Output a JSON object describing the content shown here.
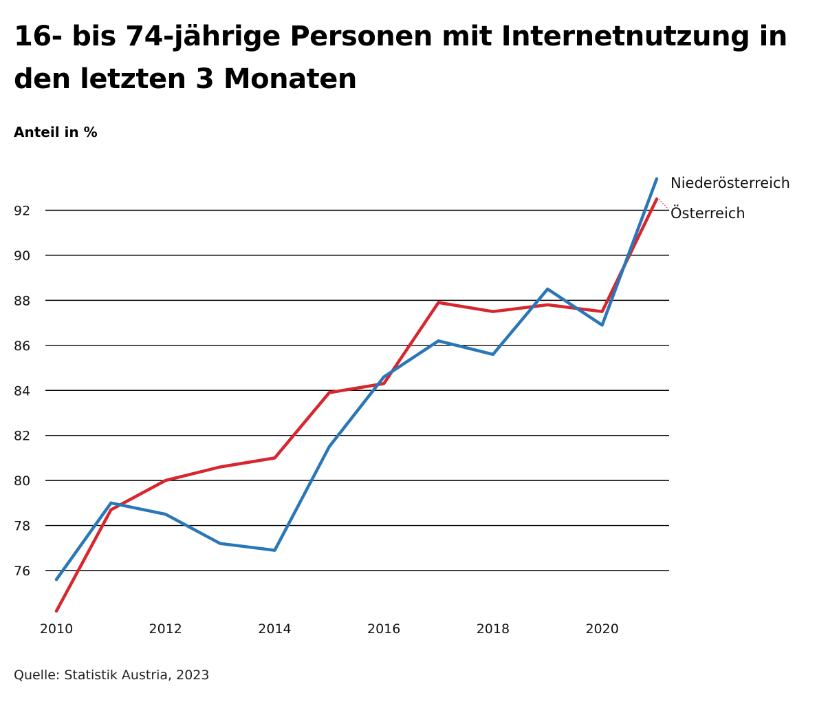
{
  "title": "16- bis 74-jährige Personen mit Internetnutzung in den letzten 3 Monaten",
  "ylabel": "Anteil in %",
  "source": "Quelle: Statistik Austria, 2023",
  "chart_data": {
    "type": "line",
    "title": "16- bis 74-jährige Personen mit Internetnutzung in den letzten 3 Monaten",
    "xlabel": "",
    "ylabel": "Anteil in %",
    "x": [
      2010,
      2011,
      2012,
      2013,
      2014,
      2015,
      2016,
      2017,
      2018,
      2019,
      2020,
      2021
    ],
    "xticks": [
      "2010",
      "2012",
      "2014",
      "2016",
      "2018",
      "2020"
    ],
    "yticks": [
      "76",
      "78",
      "80",
      "82",
      "84",
      "86",
      "88",
      "90",
      "92"
    ],
    "xlim": [
      2010,
      2021
    ],
    "ylim": [
      74.5,
      94
    ],
    "grid": "horizontal",
    "legend": "direct labels at line ends (right)",
    "series": [
      {
        "name": "Österreich",
        "color": "#d7262d",
        "values": [
          74.2,
          78.7,
          80.0,
          80.6,
          81.0,
          83.9,
          84.3,
          87.9,
          87.5,
          87.8,
          87.5,
          92.5
        ]
      },
      {
        "name": "Niederösterreich",
        "color": "#2a77b8",
        "values": [
          75.6,
          79.0,
          78.5,
          77.2,
          76.9,
          81.5,
          84.6,
          86.2,
          85.6,
          88.5,
          86.9,
          93.4
        ]
      }
    ]
  }
}
